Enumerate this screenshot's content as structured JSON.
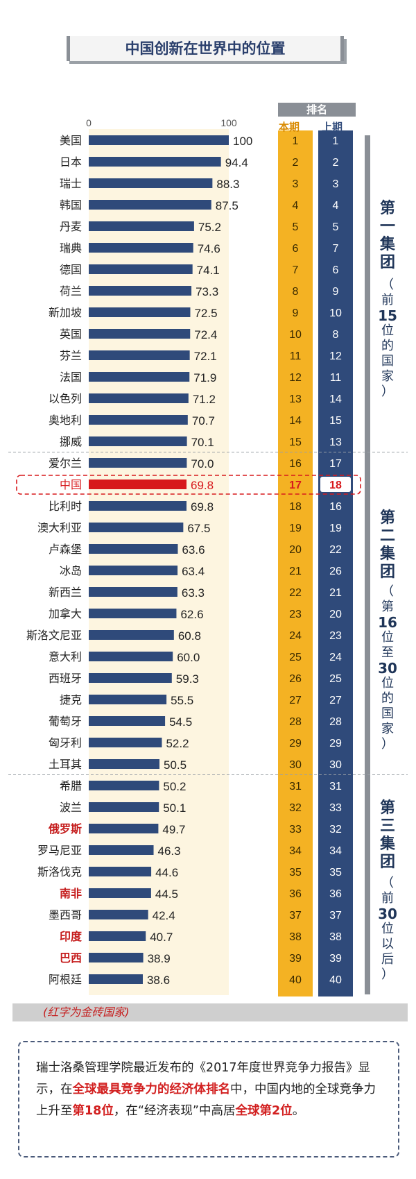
{
  "title": "中国创新在世界中的位置",
  "rank_header": "排名",
  "col_current": "本期",
  "col_previous": "上期",
  "axis_min_label": "0",
  "axis_max_label": "100",
  "groups": [
    {
      "title": "第一集团",
      "sub_open": "（",
      "sub_pre": "前",
      "sub_num": "15",
      "sub_post": "位的国家",
      "sub_close": "）"
    },
    {
      "title": "第二集团",
      "sub_open": "（",
      "sub_pre": "第",
      "sub_num": "16",
      "sub_mid": "位至",
      "sub_num2": "30",
      "sub_post": "位的国家",
      "sub_close": "）"
    },
    {
      "title": "第三集团",
      "sub_open": "（",
      "sub_pre": "前",
      "sub_num": "30",
      "sub_post": "位以后",
      "sub_close": "）"
    }
  ],
  "legend_note": "(红字为金砖国家)",
  "note": {
    "p1": "瑞士洛桑管理学院最近发布的《2017年度世界竞争力报告》显示，在",
    "h1": "全球最具竞争力的经济体排名",
    "p2": "中，中国内地的全球竞争力上升至",
    "h2": "第18位",
    "p3": "，在“经济表现”中高居",
    "h3": "全球第2位",
    "p4": "。"
  },
  "colors": {
    "bar": "#2f4a7a",
    "highlight": "#d7191c",
    "brics": "#c51d1d",
    "current_rank_bg": "#f4b223",
    "previous_rank_bg": "#2f4a7a"
  },
  "chart_data": {
    "type": "bar",
    "orientation": "horizontal",
    "xlim": [
      0,
      100
    ],
    "categories": [
      "美国",
      "日本",
      "瑞士",
      "韩国",
      "丹麦",
      "瑞典",
      "德国",
      "荷兰",
      "新加坡",
      "英国",
      "芬兰",
      "法国",
      "以色列",
      "奥地利",
      "挪威",
      "爱尔兰",
      "中国",
      "比利时",
      "澳大利亚",
      "卢森堡",
      "冰岛",
      "新西兰",
      "加拿大",
      "斯洛文尼亚",
      "意大利",
      "西班牙",
      "捷克",
      "葡萄牙",
      "匈牙利",
      "土耳其",
      "希腊",
      "波兰",
      "俄罗斯",
      "罗马尼亚",
      "斯洛伐克",
      "南非",
      "墨西哥",
      "印度",
      "巴西",
      "阿根廷"
    ],
    "values": [
      100,
      94.4,
      88.3,
      87.5,
      75.2,
      74.6,
      74.1,
      73.3,
      72.5,
      72.4,
      72.1,
      71.9,
      71.2,
      70.7,
      70.1,
      70.0,
      69.8,
      69.8,
      67.5,
      63.6,
      63.4,
      63.3,
      62.6,
      60.8,
      60.0,
      59.3,
      55.5,
      54.5,
      52.2,
      50.5,
      50.2,
      50.1,
      49.7,
      46.3,
      44.6,
      44.5,
      42.4,
      40.7,
      38.9,
      38.6
    ],
    "value_labels": [
      "100",
      "94.4",
      "88.3",
      "87.5",
      "75.2",
      "74.6",
      "74.1",
      "73.3",
      "72.5",
      "72.4",
      "72.1",
      "71.9",
      "71.2",
      "70.7",
      "70.1",
      "70.0",
      "69.8",
      "69.8",
      "67.5",
      "63.6",
      "63.4",
      "63.3",
      "62.6",
      "60.8",
      "60.0",
      "59.3",
      "55.5",
      "54.5",
      "52.2",
      "50.5",
      "50.2",
      "50.1",
      "49.7",
      "46.3",
      "44.6",
      "44.5",
      "42.4",
      "40.7",
      "38.9",
      "38.6"
    ],
    "rank_current": [
      "1",
      "2",
      "3",
      "4",
      "5",
      "6",
      "7",
      "8",
      "9",
      "10",
      "11",
      "12",
      "13",
      "14",
      "15",
      "16",
      "17",
      "18",
      "19",
      "20",
      "21",
      "22",
      "23",
      "24",
      "25",
      "26",
      "27",
      "28",
      "29",
      "30",
      "31",
      "32",
      "33",
      "34",
      "35",
      "36",
      "37",
      "38",
      "39",
      "40"
    ],
    "rank_previous": [
      "1",
      "2",
      "3",
      "4",
      "5",
      "7",
      "6",
      "9",
      "10",
      "8",
      "12",
      "11",
      "14",
      "15",
      "13",
      "17",
      "18",
      "16",
      "19",
      "22",
      "26",
      "21",
      "20",
      "23",
      "24",
      "25",
      "27",
      "28",
      "29",
      "30",
      "31",
      "33",
      "32",
      "34",
      "35",
      "36",
      "37",
      "38",
      "39",
      "40"
    ],
    "highlight": [
      "中国"
    ],
    "brics": [
      "俄罗斯",
      "南非",
      "印度",
      "巴西"
    ]
  }
}
